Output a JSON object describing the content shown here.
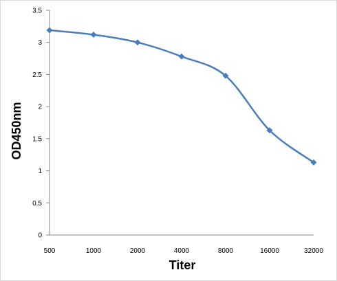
{
  "chart_data": {
    "type": "line",
    "title": "",
    "xlabel": "Titer",
    "ylabel": "OD450nm",
    "categories": [
      "500",
      "1000",
      "2000",
      "4000",
      "8000",
      "16000",
      "32000"
    ],
    "series": [
      {
        "values": [
          3.19,
          3.12,
          3.0,
          2.78,
          2.48,
          1.63,
          1.13
        ]
      }
    ],
    "ylim": [
      0,
      3.5
    ],
    "yticks": [
      "0",
      "0.5",
      "1",
      "1.5",
      "2",
      "2.5",
      "3",
      "3.5"
    ],
    "grid": false,
    "legend": "none",
    "line_color": "#4a7ebb",
    "marker": "diamond"
  }
}
